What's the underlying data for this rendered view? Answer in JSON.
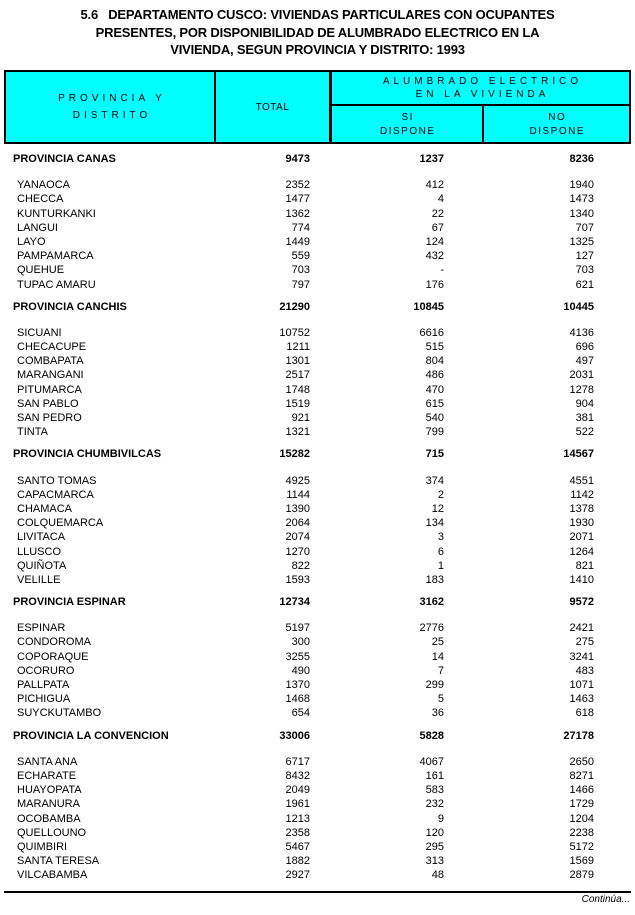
{
  "title": {
    "lines": [
      "5.6   DEPARTAMENTO CUSCO: VIVIENDAS PARTICULARES CON OCUPANTES",
      "PRESENTES, POR DISPONIBILIDAD DE ALUMBRADO ELECTRICO EN LA",
      "VIVIENDA, SEGUN PROVINCIA Y DISTRITO: 1993"
    ]
  },
  "table": {
    "header": {
      "provincia_line1": "PROVINCIA Y",
      "provincia_line2": "DISTRITO",
      "total": "TOTAL",
      "group_line1": "ALUMBRADO ELECTRICO",
      "group_line2": "EN LA VIVIENDA",
      "si_line1": "SI",
      "si_line2": "DISPONE",
      "no_line1": "NO",
      "no_line2": "DISPONE"
    },
    "sections": [
      {
        "province": {
          "name": "PROVINCIA CANAS",
          "total": "9473",
          "si": "1237",
          "no": "8236"
        },
        "districts": [
          {
            "name": "YANAOCA",
            "total": "2352",
            "si": "412",
            "no": "1940"
          },
          {
            "name": "CHECCA",
            "total": "1477",
            "si": "4",
            "no": "1473"
          },
          {
            "name": "KUNTURKANKI",
            "total": "1362",
            "si": "22",
            "no": "1340"
          },
          {
            "name": "LANGUI",
            "total": "774",
            "si": "67",
            "no": "707"
          },
          {
            "name": "LAYO",
            "total": "1449",
            "si": "124",
            "no": "1325"
          },
          {
            "name": "PAMPAMARCA",
            "total": "559",
            "si": "432",
            "no": "127"
          },
          {
            "name": "QUEHUE",
            "total": "703",
            "si": "-",
            "no": "703"
          },
          {
            "name": "TUPAC AMARU",
            "total": "797",
            "si": "176",
            "no": "621"
          }
        ]
      },
      {
        "province": {
          "name": "PROVINCIA CANCHIS",
          "total": "21290",
          "si": "10845",
          "no": "10445"
        },
        "districts": [
          {
            "name": "SICUANI",
            "total": "10752",
            "si": "6616",
            "no": "4136"
          },
          {
            "name": "CHECACUPE",
            "total": "1211",
            "si": "515",
            "no": "696"
          },
          {
            "name": "COMBAPATA",
            "total": "1301",
            "si": "804",
            "no": "497"
          },
          {
            "name": "MARANGANI",
            "total": "2517",
            "si": "486",
            "no": "2031"
          },
          {
            "name": "PITUMARCA",
            "total": "1748",
            "si": "470",
            "no": "1278"
          },
          {
            "name": "SAN PABLO",
            "total": "1519",
            "si": "615",
            "no": "904"
          },
          {
            "name": "SAN PEDRO",
            "total": "921",
            "si": "540",
            "no": "381"
          },
          {
            "name": "TINTA",
            "total": "1321",
            "si": "799",
            "no": "522"
          }
        ]
      },
      {
        "province": {
          "name": "PROVINCIA CHUMBIVILCAS",
          "total": "15282",
          "si": "715",
          "no": "14567"
        },
        "districts": [
          {
            "name": "SANTO TOMAS",
            "total": "4925",
            "si": "374",
            "no": "4551"
          },
          {
            "name": "CAPACMARCA",
            "total": "1144",
            "si": "2",
            "no": "1142"
          },
          {
            "name": "CHAMACA",
            "total": "1390",
            "si": "12",
            "no": "1378"
          },
          {
            "name": "COLQUEMARCA",
            "total": "2064",
            "si": "134",
            "no": "1930"
          },
          {
            "name": "LIVITACA",
            "total": "2074",
            "si": "3",
            "no": "2071"
          },
          {
            "name": "LLUSCO",
            "total": "1270",
            "si": "6",
            "no": "1264"
          },
          {
            "name": "QUIÑOTA",
            "total": "822",
            "si": "1",
            "no": "821"
          },
          {
            "name": "VELILLE",
            "total": "1593",
            "si": "183",
            "no": "1410"
          }
        ]
      },
      {
        "province": {
          "name": "PROVINCIA ESPINAR",
          "total": "12734",
          "si": "3162",
          "no": "9572"
        },
        "districts": [
          {
            "name": "ESPINAR",
            "total": "5197",
            "si": "2776",
            "no": "2421"
          },
          {
            "name": "CONDOROMA",
            "total": "300",
            "si": "25",
            "no": "275"
          },
          {
            "name": "COPORAQUE",
            "total": "3255",
            "si": "14",
            "no": "3241"
          },
          {
            "name": "OCORURO",
            "total": "490",
            "si": "7",
            "no": "483"
          },
          {
            "name": "PALLPATA",
            "total": "1370",
            "si": "299",
            "no": "1071"
          },
          {
            "name": "PICHIGUA",
            "total": "1468",
            "si": "5",
            "no": "1463"
          },
          {
            "name": "SUYCKUTAMBO",
            "total": "654",
            "si": "36",
            "no": "618"
          }
        ]
      },
      {
        "province": {
          "name": "PROVINCIA LA CONVENCION",
          "total": "33006",
          "si": "5828",
          "no": "27178"
        },
        "districts": [
          {
            "name": "SANTA ANA",
            "total": "6717",
            "si": "4067",
            "no": "2650"
          },
          {
            "name": "ECHARATE",
            "total": "8432",
            "si": "161",
            "no": "8271"
          },
          {
            "name": "HUAYOPATA",
            "total": "2049",
            "si": "583",
            "no": "1466"
          },
          {
            "name": "MARANURA",
            "total": "1961",
            "si": "232",
            "no": "1729"
          },
          {
            "name": "OCOBAMBA",
            "total": "1213",
            "si": "9",
            "no": "1204"
          },
          {
            "name": "QUELLOUNO",
            "total": "2358",
            "si": "120",
            "no": "2238"
          },
          {
            "name": "QUIMBIRI",
            "total": "5467",
            "si": "295",
            "no": "5172"
          },
          {
            "name": "SANTA TERESA",
            "total": "1882",
            "si": "313",
            "no": "1569"
          },
          {
            "name": "VILCABAMBA",
            "total": "2927",
            "si": "48",
            "no": "2879"
          }
        ]
      }
    ]
  },
  "footer": {
    "continua": "Continúa..."
  },
  "colors": {
    "header_bg": "#00FFFF",
    "border": "#000000",
    "text": "#000000",
    "page_bg": "#FFFFFF"
  }
}
